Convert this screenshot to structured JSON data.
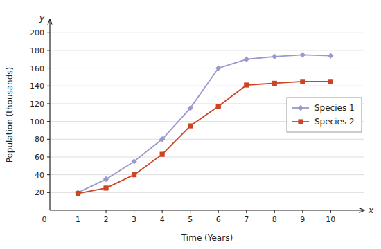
{
  "chart_data": {
    "type": "line",
    "xlabel": "Time (Years)",
    "ylabel": "Population (thousands)",
    "x": [
      1,
      2,
      3,
      4,
      5,
      6,
      7,
      8,
      9,
      10
    ],
    "series": [
      {
        "name": "Species 1",
        "color": "#9999cc",
        "marker": "diamond",
        "values": [
          20,
          35,
          55,
          80,
          115,
          160,
          170,
          173,
          175,
          174
        ]
      },
      {
        "name": "Species 2",
        "color": "#cc4422",
        "marker": "square",
        "values": [
          19,
          25,
          40,
          63,
          95,
          117,
          141,
          143,
          145,
          145
        ]
      }
    ],
    "xlim": [
      0,
      11.2
    ],
    "ylim": [
      0,
      215
    ],
    "xticks": [
      1,
      2,
      3,
      4,
      5,
      6,
      7,
      8,
      9,
      10
    ],
    "yticks": [
      20,
      40,
      60,
      80,
      100,
      120,
      140,
      160,
      180,
      200
    ],
    "grid": true,
    "legend": "right",
    "annotations": [
      {
        "text": "0",
        "x": 0,
        "y": 0
      },
      {
        "text": "x",
        "x": 11.2,
        "y": 0
      },
      {
        "text": "y",
        "x": 0,
        "y": 215
      }
    ]
  }
}
